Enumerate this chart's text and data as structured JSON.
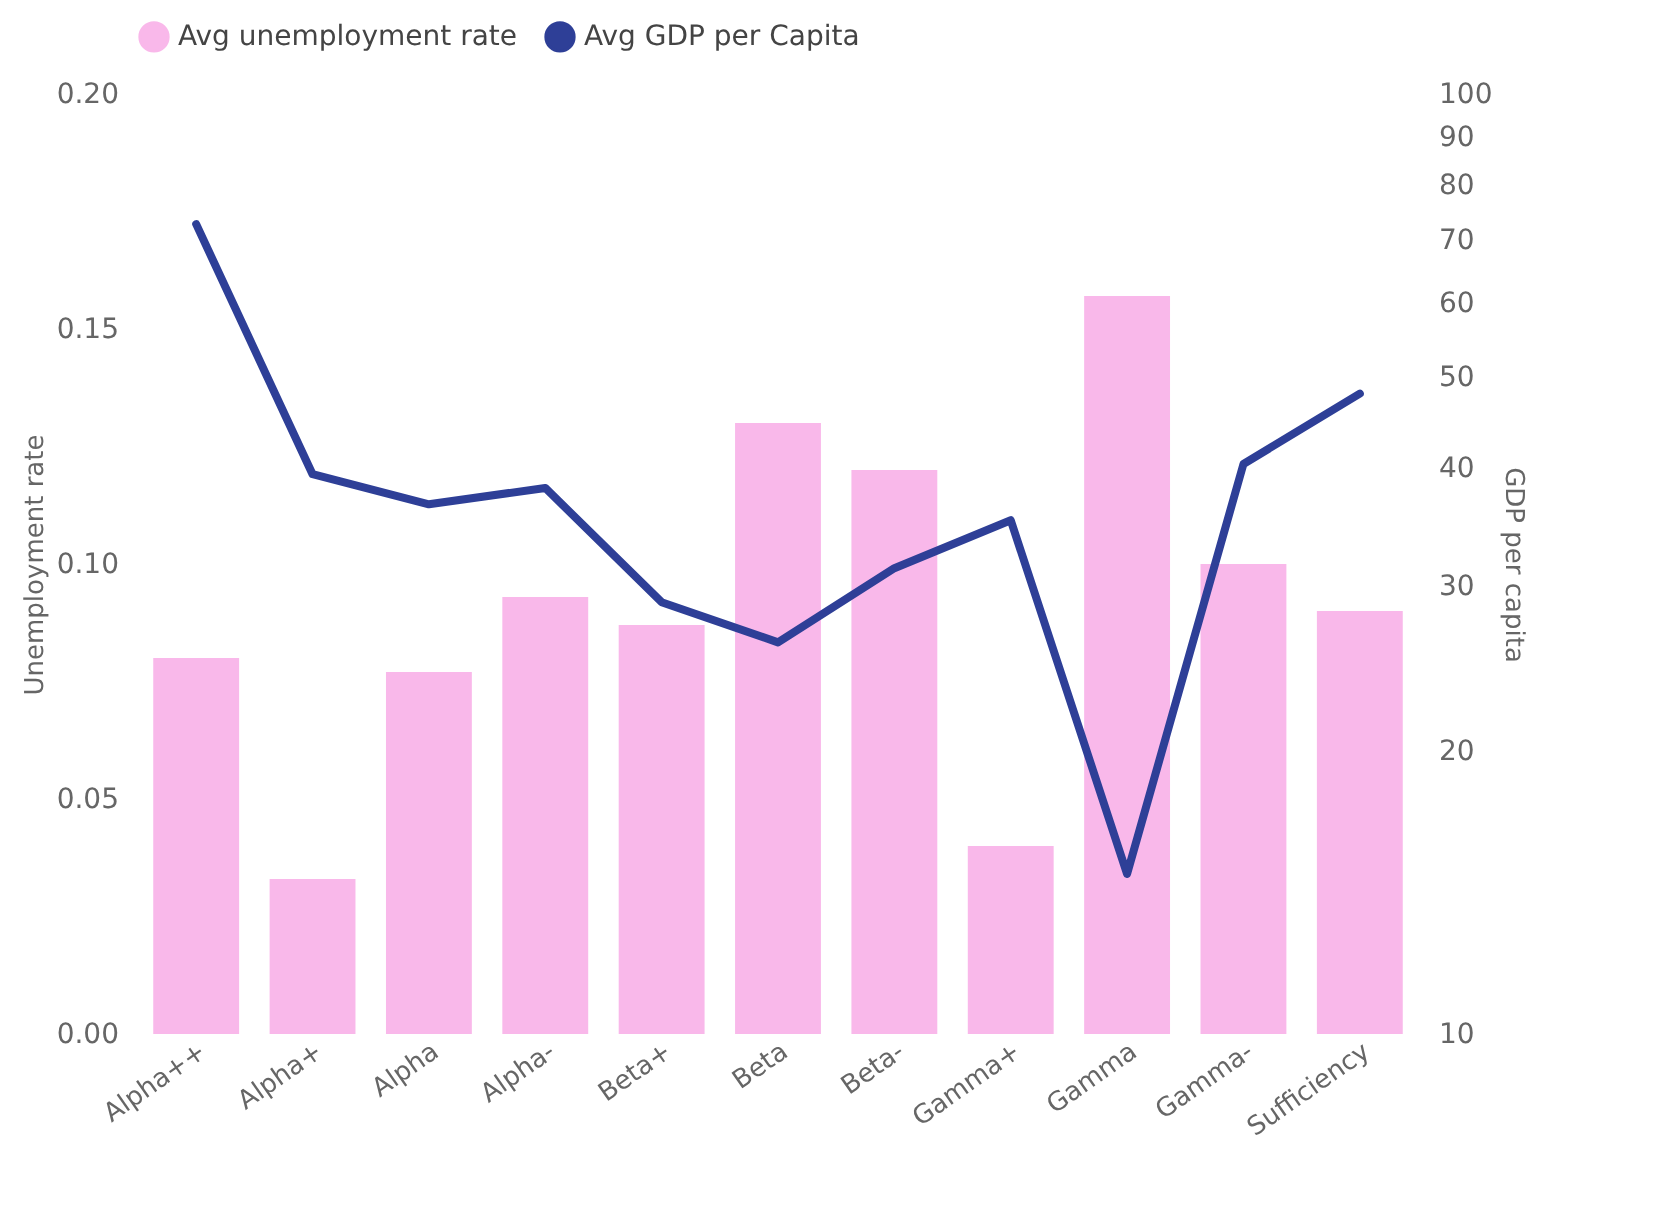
{
  "chart_data": {
    "type": "bar",
    "ylabel": "Unemployment rate",
    "y2label": "GDP per capita",
    "categories": [
      "Alpha++",
      "Alpha+",
      "Alpha",
      "Alpha-",
      "Beta+",
      "Beta",
      "Beta-",
      "Gamma+",
      "Gamma",
      "Gamma-",
      "Sufficiency"
    ],
    "series": [
      {
        "name": "Avg unemployment rate",
        "color": "#f9b8ea",
        "values": [
          0.08,
          0.033,
          0.077,
          0.093,
          0.087,
          0.13,
          0.12,
          0.04,
          0.157,
          0.1,
          0.09
        ]
      },
      {
        "name": "Avg GDP per Capita",
        "color": "#2e3f97",
        "type": "line",
        "axis": "y2",
        "values": [
          72.7,
          39.4,
          36.6,
          38.1,
          28.8,
          26.1,
          31.3,
          35.2,
          14.8,
          40.4,
          48.0
        ]
      }
    ],
    "ylim": [
      0,
      0.2
    ],
    "yticks": [
      {
        "value": 0,
        "label": "0.00"
      },
      {
        "value": 0.05,
        "label": "0.05"
      },
      {
        "value": 0.1,
        "label": "0.10"
      },
      {
        "value": 0.15,
        "label": "0.15"
      },
      {
        "value": 0.2,
        "label": "0.20"
      }
    ],
    "y2lim": [
      10,
      100
    ],
    "y2ticks": [
      10,
      20,
      30,
      40,
      50,
      60,
      70,
      80,
      90,
      100
    ],
    "log": "y2",
    "grid": false,
    "legend": "top"
  }
}
